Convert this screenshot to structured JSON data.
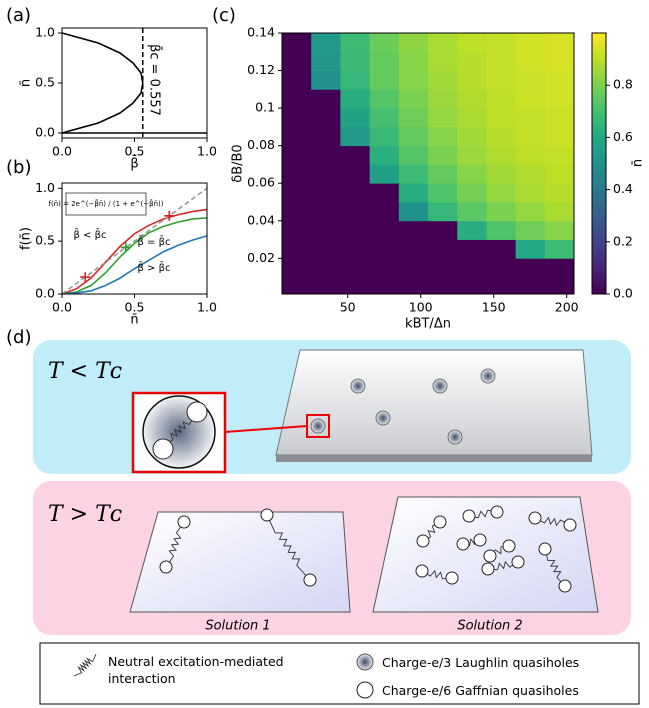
{
  "panels": {
    "a": "(a)",
    "b": "(b)",
    "c": "(c)",
    "d": "(d)"
  },
  "chart_data": [
    {
      "type": "line",
      "xlabel": "β̄",
      "ylabel": "n̄",
      "xlim": [
        0,
        1
      ],
      "ylim": [
        -0.05,
        1.05
      ],
      "xticks": [
        {
          "value": 0,
          "label": "0.0"
        },
        {
          "value": 0.5,
          "label": "0.5"
        },
        {
          "value": 1,
          "label": "1.0"
        }
      ],
      "yticks": [
        {
          "value": 0,
          "label": "0.0"
        },
        {
          "value": 0.5,
          "label": "0.5"
        },
        {
          "value": 1,
          "label": "1.0"
        }
      ],
      "series": [
        {
          "color": "#000000",
          "x": [
            0,
            0.25,
            0.4,
            0.49,
            0.545,
            0.557,
            0.545,
            0.49,
            0.4,
            0.25,
            0
          ],
          "values": [
            1,
            0.9,
            0.8,
            0.7,
            0.6,
            0.5,
            0.4,
            0.3,
            0.2,
            0.1,
            0
          ]
        },
        {
          "color": "#000000",
          "x": [
            0,
            1
          ],
          "values": [
            0,
            0
          ]
        }
      ],
      "critical": {
        "x": 0.557,
        "label": "β̄c = 0.557"
      }
    },
    {
      "type": "line",
      "xlabel": "n̄",
      "ylabel": "f(n̄)",
      "xlim": [
        0,
        1
      ],
      "ylim": [
        0,
        1.05
      ],
      "xticks": [
        {
          "value": 0,
          "label": "0.0"
        },
        {
          "value": 0.5,
          "label": "0.5"
        },
        {
          "value": 1,
          "label": "1.0"
        }
      ],
      "yticks": [
        {
          "value": 0,
          "label": "0.0"
        },
        {
          "value": 0.5,
          "label": "0.5"
        },
        {
          "value": 1,
          "label": "1.0"
        }
      ],
      "x": [
        0,
        0.1,
        0.2,
        0.3,
        0.4,
        0.5,
        0.6,
        0.7,
        0.8,
        0.9,
        1
      ],
      "series": [
        {
          "color": "#d62728",
          "values": [
            0,
            0.05,
            0.15,
            0.3,
            0.45,
            0.57,
            0.65,
            0.71,
            0.75,
            0.78,
            0.8
          ]
        },
        {
          "color": "#2ca02c",
          "values": [
            0,
            0.02,
            0.08,
            0.2,
            0.35,
            0.48,
            0.58,
            0.64,
            0.68,
            0.71,
            0.72
          ]
        },
        {
          "color": "#1f77b4",
          "values": [
            0,
            0.01,
            0.03,
            0.08,
            0.15,
            0.24,
            0.32,
            0.4,
            0.46,
            0.51,
            0.55
          ]
        },
        {
          "color": "#999999",
          "dash": true,
          "values": [
            0,
            0.1,
            0.2,
            0.3,
            0.4,
            0.5,
            0.6,
            0.7,
            0.8,
            0.9,
            1
          ]
        }
      ],
      "markers": [
        {
          "color": "#d62728",
          "x": [
            0.16,
            0.74
          ],
          "values": [
            0.16,
            0.74
          ]
        },
        {
          "color": "#2ca02c",
          "x": [
            0.44
          ],
          "values": [
            0.44
          ]
        }
      ],
      "annotations": [
        "f(n̄) = 2e^(−β̄n̄) / (1 + e^(−β̄n̄))",
        "β̄ < β̄c",
        "β̄ = β̄c",
        "β̄ > β̄c"
      ]
    },
    {
      "type": "heatmap",
      "xlabel": "kBT/Δn",
      "ylabel": "δB/B0",
      "xlim": [
        5,
        205
      ],
      "ylim": [
        0.001,
        0.14
      ],
      "xticks": [
        50,
        100,
        150,
        200
      ],
      "yticks": [
        0.02,
        0.04,
        0.06,
        0.08,
        0.1,
        0.12,
        0.14
      ],
      "x_edges": [
        5,
        25,
        45,
        65,
        85,
        105,
        125,
        145,
        165,
        185,
        205
      ],
      "y_edges": [
        0.001,
        0.01,
        0.02,
        0.03,
        0.04,
        0.05,
        0.06,
        0.07,
        0.08,
        0.09,
        0.1,
        0.11,
        0.12,
        0.13,
        0.14
      ],
      "z": [
        [
          0,
          0,
          0,
          0,
          0,
          0,
          0,
          0,
          0,
          0
        ],
        [
          0,
          0,
          0,
          0,
          0,
          0,
          0,
          0,
          0,
          0
        ],
        [
          0,
          0,
          0,
          0,
          0,
          0,
          0,
          0,
          0.6,
          0.68
        ],
        [
          0,
          0,
          0,
          0,
          0,
          0,
          0.62,
          0.72,
          0.78,
          0.82
        ],
        [
          0,
          0,
          0,
          0,
          0.5,
          0.66,
          0.74,
          0.8,
          0.84,
          0.87
        ],
        [
          0,
          0,
          0,
          0,
          0.62,
          0.72,
          0.79,
          0.84,
          0.87,
          0.89
        ],
        [
          0,
          0,
          0,
          0.56,
          0.68,
          0.76,
          0.82,
          0.86,
          0.88,
          0.9
        ],
        [
          0,
          0,
          0,
          0.63,
          0.73,
          0.8,
          0.85,
          0.88,
          0.9,
          0.91
        ],
        [
          0,
          0,
          0.54,
          0.67,
          0.76,
          0.82,
          0.86,
          0.89,
          0.91,
          0.92
        ],
        [
          0,
          0,
          0.58,
          0.7,
          0.78,
          0.84,
          0.87,
          0.9,
          0.91,
          0.92
        ],
        [
          0,
          0,
          0.62,
          0.73,
          0.8,
          0.85,
          0.88,
          0.9,
          0.92,
          0.93
        ],
        [
          0,
          0.5,
          0.66,
          0.76,
          0.82,
          0.86,
          0.89,
          0.91,
          0.92,
          0.93
        ],
        [
          0,
          0.53,
          0.67,
          0.76,
          0.82,
          0.87,
          0.89,
          0.91,
          0.93,
          0.94
        ],
        [
          0,
          0.54,
          0.68,
          0.77,
          0.83,
          0.87,
          0.9,
          0.91,
          0.93,
          0.94
        ]
      ],
      "colormap": "viridis",
      "clim": [
        0,
        1
      ],
      "cticks": [
        {
          "value": 0,
          "label": "0.0"
        },
        {
          "value": 0.2,
          "label": "0.2"
        },
        {
          "value": 0.4,
          "label": "0.4"
        },
        {
          "value": 0.6,
          "label": "0.6"
        },
        {
          "value": 0.8,
          "label": "0.8"
        }
      ],
      "colorbar_label": "n̄"
    }
  ],
  "diagram": {
    "top_condition": "T < Tᴄ",
    "bottom_condition": "T > Tᴄ",
    "solutions": [
      "Solution 1",
      "Solution 2"
    ],
    "legend": [
      "Neutral excitation-mediated interaction",
      "Charge-e/3 Laughlin quasiholes",
      "Charge-e/6 Gaffnian quasiholes"
    ]
  }
}
